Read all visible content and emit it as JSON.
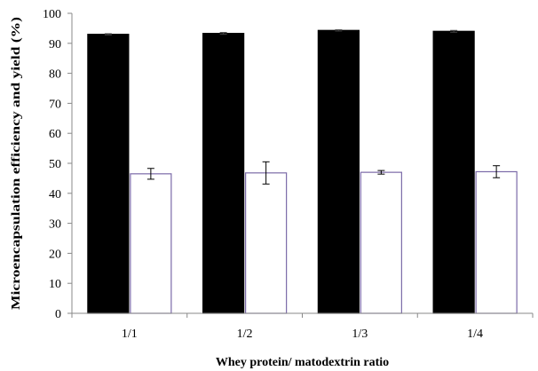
{
  "chart_data": {
    "type": "bar",
    "title": "",
    "xlabel": "Whey protein/ matodextrin ratio",
    "ylabel": "Microencapsulation efficiency and yield (%)",
    "categories": [
      "1/1",
      "1/2",
      "1/3",
      "1/4"
    ],
    "ylim": [
      0,
      100
    ],
    "yticks": [
      0,
      10,
      20,
      30,
      40,
      50,
      60,
      70,
      80,
      90,
      100
    ],
    "grid": false,
    "legend": "none",
    "series": [
      {
        "values": [
          93.0,
          93.3,
          94.3,
          94.0
        ],
        "errors": [
          0.2,
          0.3,
          0.2,
          0.3
        ],
        "fill": "#000000",
        "stroke": "#000000"
      },
      {
        "values": [
          46.5,
          46.8,
          47.0,
          47.2
        ],
        "errors": [
          1.8,
          3.7,
          0.6,
          2.0
        ],
        "fill": "#ffffff",
        "stroke": "#7b6aa8"
      }
    ]
  }
}
